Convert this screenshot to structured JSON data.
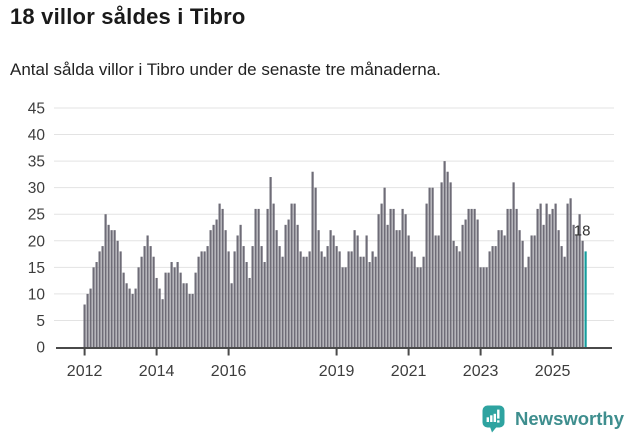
{
  "header": {
    "title": "18 villor såldes i Tibro",
    "subtitle": "Antal sålda villor i Tibro under de senaste tre månaderna."
  },
  "chart_data": {
    "type": "bar",
    "title": "18 villor såldes i Tibro",
    "subtitle": "Antal sålda villor i Tibro under de senaste tre månaderna.",
    "ylabel": "",
    "xlabel": "",
    "unit": "sålda villor, rullande tre månader",
    "frequency": "monthly",
    "x_start": "2012-01",
    "x_end": "2025-12",
    "ylim": [
      0,
      45
    ],
    "grid": "horizontal",
    "legend": "none",
    "y_ticks": [
      0,
      5,
      10,
      15,
      20,
      25,
      30,
      35,
      40,
      45
    ],
    "x_tick_labels": [
      "2012",
      "2014",
      "2016",
      "2019",
      "2021",
      "2023",
      "2025"
    ],
    "x_tick_start_year": 2012,
    "annotation_label": "18",
    "highlight_last": true,
    "values": [
      8,
      10,
      11,
      15,
      16,
      18,
      19,
      25,
      23,
      22,
      22,
      20,
      18,
      14,
      12,
      11,
      10,
      11,
      15,
      17,
      19,
      21,
      19,
      17,
      13,
      11,
      9,
      14,
      14,
      16,
      15,
      16,
      14,
      12,
      12,
      10,
      10,
      14,
      17,
      18,
      18,
      19,
      22,
      23,
      24,
      27,
      26,
      22,
      18,
      12,
      18,
      21,
      23,
      19,
      16,
      13,
      19,
      26,
      26,
      19,
      16,
      26,
      32,
      27,
      22,
      19,
      17,
      23,
      24,
      27,
      27,
      23,
      18,
      17,
      17,
      18,
      33,
      30,
      22,
      18,
      17,
      19,
      22,
      21,
      19,
      18,
      15,
      15,
      18,
      18,
      22,
      21,
      17,
      17,
      21,
      16,
      18,
      17,
      25,
      27,
      30,
      23,
      26,
      26,
      22,
      22,
      26,
      25,
      21,
      18,
      17,
      15,
      15,
      17,
      27,
      30,
      30,
      21,
      21,
      31,
      35,
      33,
      31,
      20,
      19,
      18,
      23,
      24,
      26,
      26,
      26,
      24,
      15,
      15,
      15,
      18,
      19,
      19,
      22,
      22,
      21,
      26,
      26,
      31,
      26,
      22,
      20,
      15,
      17,
      21,
      21,
      26,
      27,
      23,
      27,
      25,
      26,
      27,
      22,
      19,
      17,
      27,
      28,
      23,
      21,
      25,
      20,
      18
    ],
    "colors": {
      "bar": "#6e6c77",
      "highlight": "#149c9c",
      "grid": "#e3e3e3",
      "axis": "#4a4a4a",
      "tick_text": "#3d3d3d",
      "annotation_text": "#333333"
    }
  },
  "footer": {
    "brand": "Newsworthy",
    "brand_color": "#3e8e8e",
    "icon": "newsworthy-speech-bubble-chart-icon",
    "icon_color": "#2ea3a0"
  }
}
